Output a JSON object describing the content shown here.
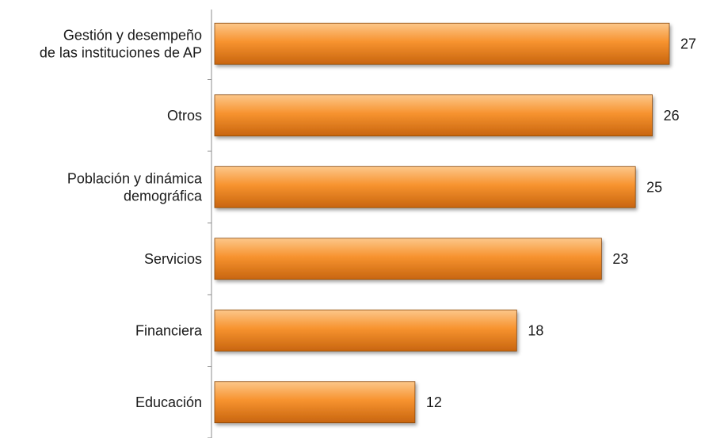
{
  "chart_data": {
    "type": "bar",
    "orientation": "horizontal",
    "categories": [
      [
        "Gestión y desempeño",
        "de las instituciones de AP"
      ],
      [
        "Otros"
      ],
      [
        "Población y dinámica",
        "demográfica"
      ],
      [
        "Servicios"
      ],
      [
        "Financiera"
      ],
      [
        "Educación"
      ]
    ],
    "values": [
      27,
      26,
      25,
      23,
      18,
      12
    ],
    "data_labels": [
      "27",
      "26",
      "25",
      "23",
      "18",
      "12"
    ],
    "title": "",
    "xlabel": "",
    "ylabel": "",
    "xlim": [
      0,
      27
    ],
    "grid": false,
    "legend": "none",
    "colors": {
      "bar_light": "#fcc78a",
      "bar_main": "#f7932f",
      "bar_dark": "#c8650f",
      "bar_border": "#8a4a10",
      "axis": "#8c8c8c"
    }
  }
}
